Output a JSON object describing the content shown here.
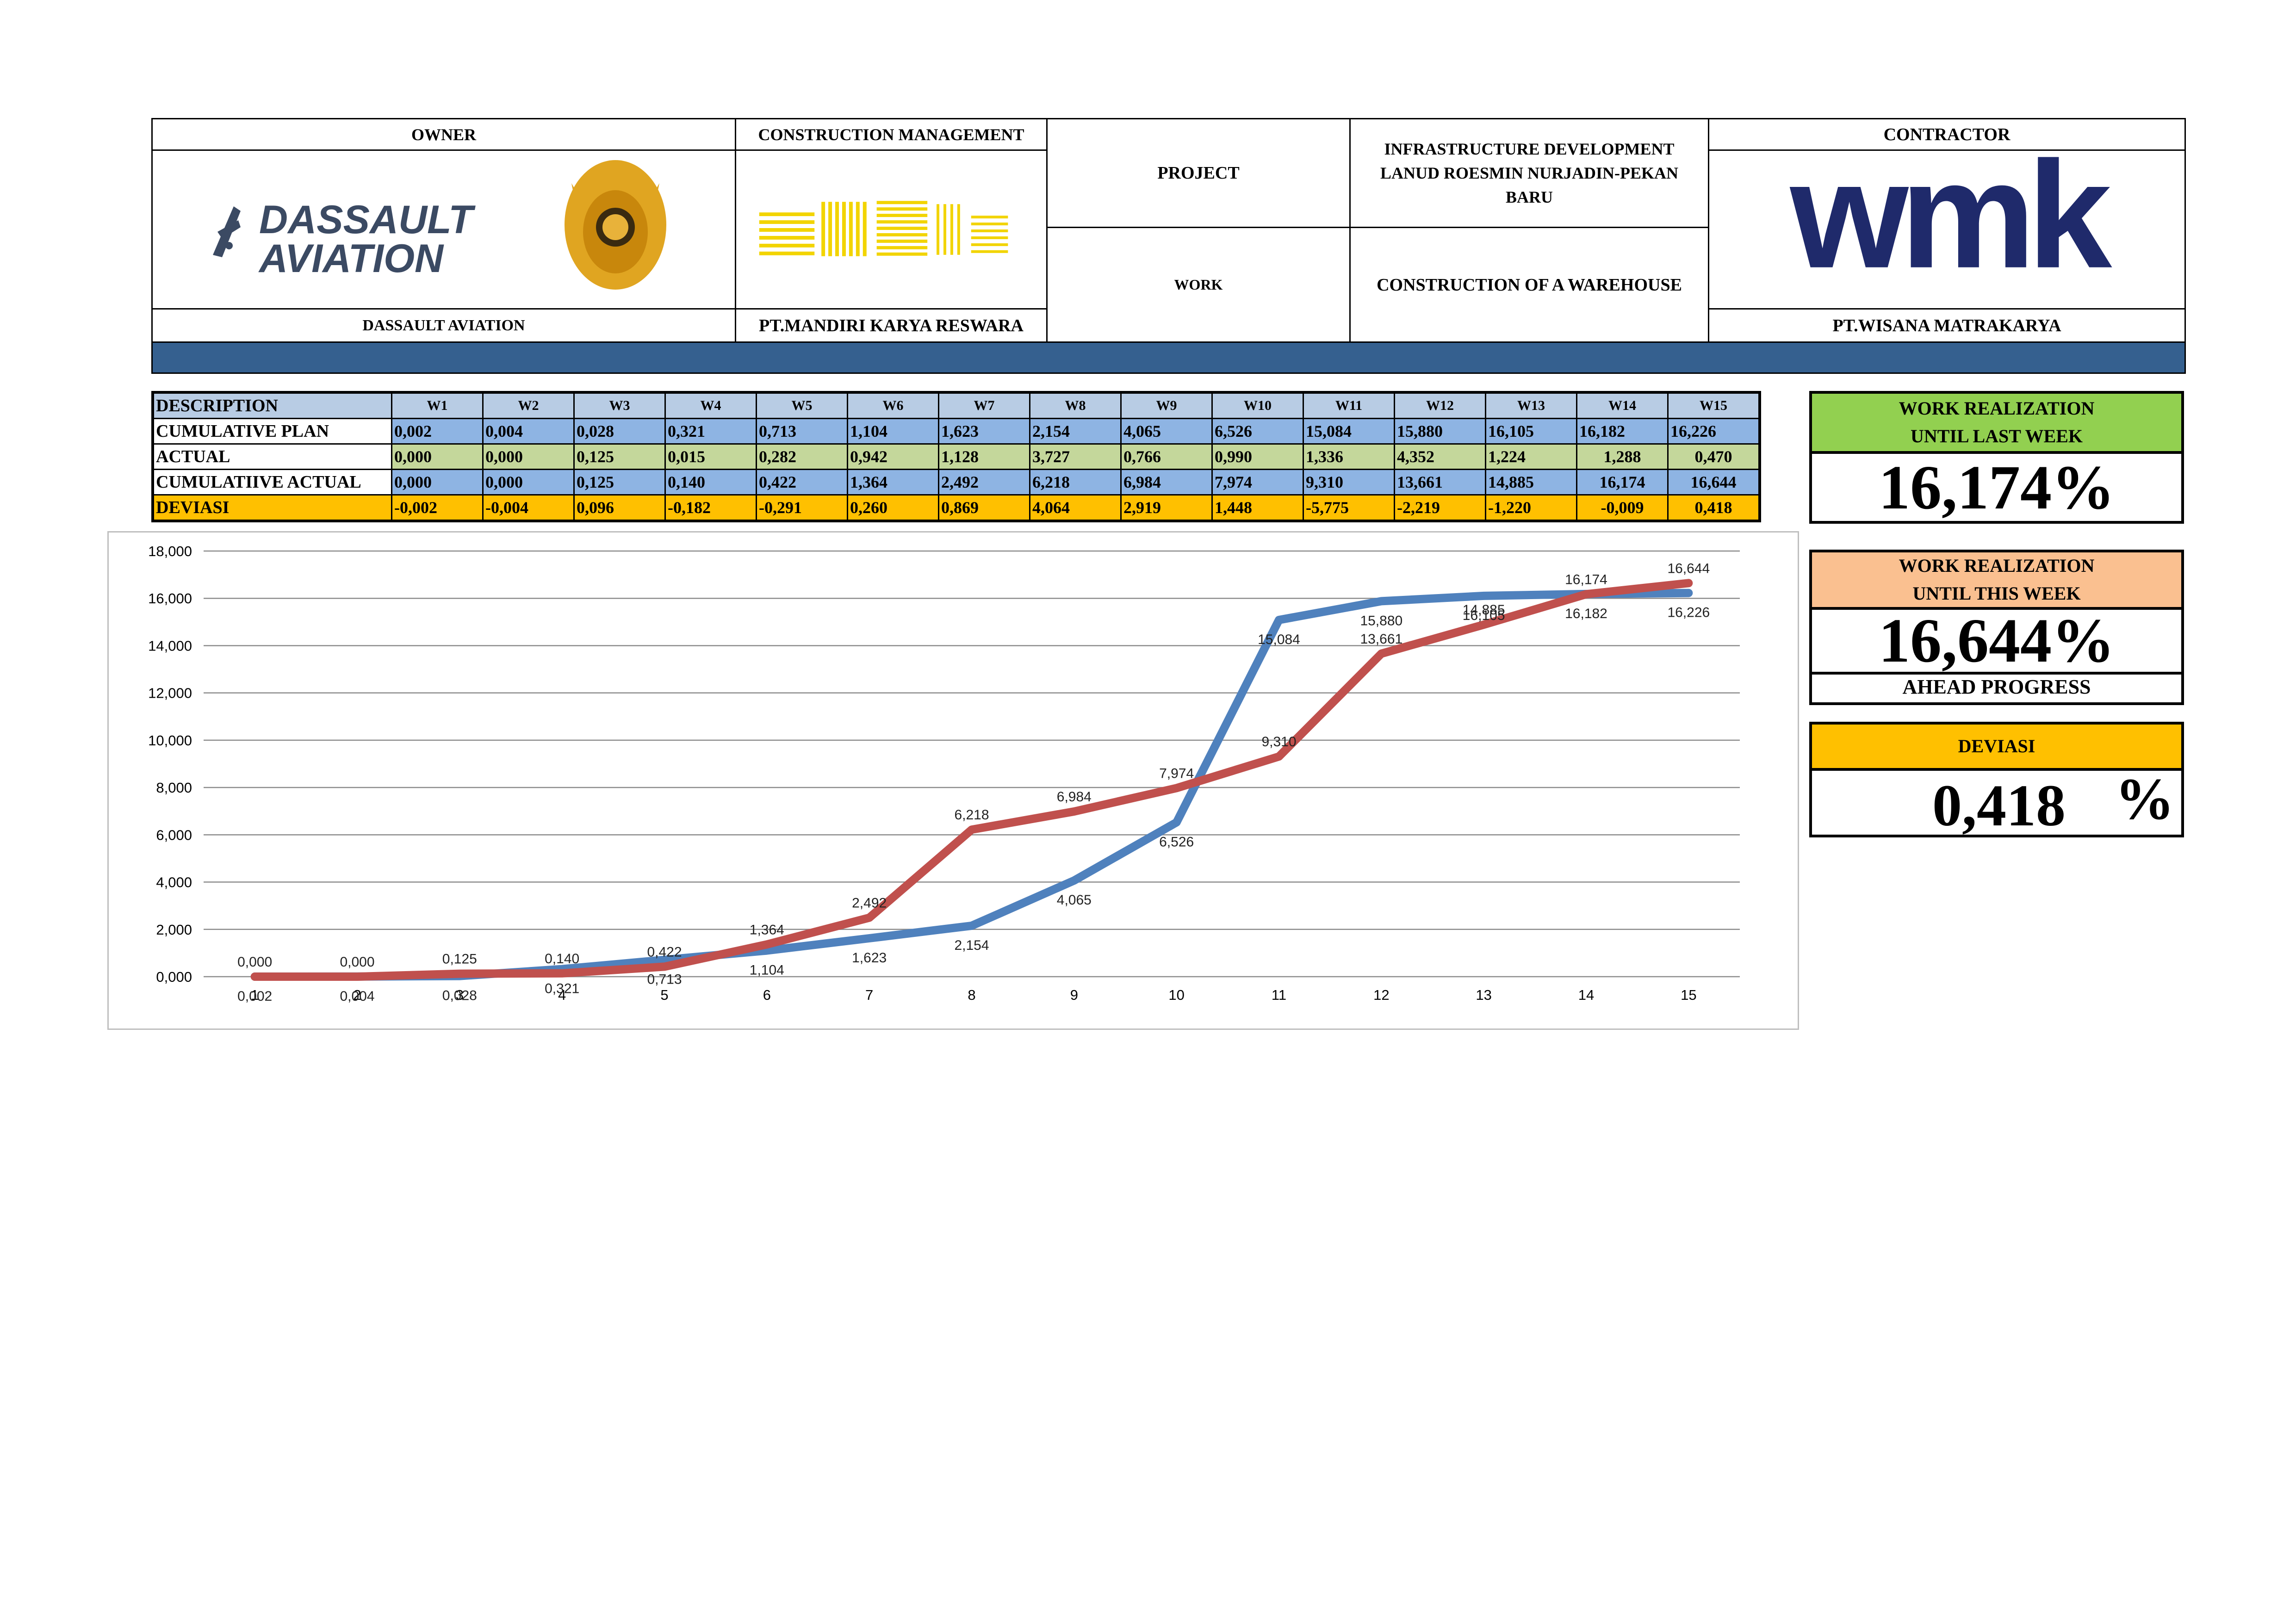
{
  "header": {
    "owner_title": "OWNER",
    "owner_name": "DASSAULT AVIATION",
    "owner_logo_text": [
      "DASSAULT",
      "AVIATION"
    ],
    "cm_title": "CONSTRUCTION MANAGEMENT",
    "cm_name": "PT.MANDIRI KARYA RESWARA",
    "project_label": "PROJECT",
    "project_value": "INFRASTRUCTURE DEVELOPMENT LANUD ROESMIN NURJADIN-PEKAN BARU",
    "work_label": "WORK",
    "work_value": "CONSTRUCTION OF A WAREHOUSE",
    "contractor_title": "CONTRACTOR",
    "contractor_name": "PT.WISANA MATRAKARYA",
    "contractor_logo_text": "wmk"
  },
  "table": {
    "description_label": "DESCRIPTION",
    "weeks": [
      "W1",
      "W2",
      "W3",
      "W4",
      "W5",
      "W6",
      "W7",
      "W8",
      "W9",
      "W10",
      "W11",
      "W12",
      "W13",
      "W14",
      "W15"
    ],
    "rows": [
      {
        "label": "CUMULATIVE PLAN",
        "values": [
          "0,002",
          "0,004",
          "0,028",
          "0,321",
          "0,713",
          "1,104",
          "1,623",
          "2,154",
          "4,065",
          "6,526",
          "15,084",
          "15,880",
          "16,105",
          "16,182",
          "16,226"
        ]
      },
      {
        "label": "ACTUAL",
        "values": [
          "0,000",
          "0,000",
          "0,125",
          "0,015",
          "0,282",
          "0,942",
          "1,128",
          "3,727",
          "0,766",
          "0,990",
          "1,336",
          "4,352",
          "1,224",
          "1,288",
          "0,470"
        ]
      },
      {
        "label": "CUMULATIIVE ACTUAL",
        "values": [
          "0,000",
          "0,000",
          "0,125",
          "0,140",
          "0,422",
          "1,364",
          "2,492",
          "6,218",
          "6,984",
          "7,974",
          "9,310",
          "13,661",
          "14,885",
          "16,174",
          "16,644"
        ]
      },
      {
        "label": "DEVIASI",
        "values": [
          "-0,002",
          "-0,004",
          "0,096",
          "-0,182",
          "-0,291",
          "0,260",
          "0,869",
          "4,064",
          "2,919",
          "1,448",
          "-5,775",
          "-2,219",
          "-1,220",
          "-0,009",
          "0,418"
        ]
      }
    ]
  },
  "panels": {
    "last_week_title_1": "WORK REALIZATION",
    "last_week_title_2": "UNTIL LAST WEEK",
    "last_week_value": "16,174%",
    "this_week_title_1": "WORK REALIZATION",
    "this_week_title_2": "UNTIL THIS WEEK",
    "this_week_value": "16,644%",
    "progress_status": "AHEAD PROGRESS",
    "deviasi_title": "DEVIASI",
    "deviasi_value": "0,418",
    "deviasi_unit": "%"
  },
  "colors": {
    "plan_line": "#4f81bd",
    "actual_line": "#c0504d",
    "header_band": "#35608f",
    "panel_green": "#92d050",
    "panel_peach": "#fac090",
    "panel_orange": "#ffc000"
  },
  "chart_data": {
    "type": "line",
    "x": [
      1,
      2,
      3,
      4,
      5,
      6,
      7,
      8,
      9,
      10,
      11,
      12,
      13,
      14,
      15
    ],
    "ylim": [
      0,
      18
    ],
    "yticks": [
      "0,000",
      "2,000",
      "4,000",
      "6,000",
      "8,000",
      "10,000",
      "12,000",
      "14,000",
      "16,000",
      "18,000"
    ],
    "grid": true,
    "legend": "none",
    "series": [
      {
        "color": "#4f81bd",
        "values": [
          0.002,
          0.004,
          0.028,
          0.321,
          0.713,
          1.104,
          1.623,
          2.154,
          4.065,
          6.526,
          15.084,
          15.88,
          16.105,
          16.182,
          16.226
        ],
        "labels": [
          "0,002",
          "0,004",
          "0,028",
          "0,321",
          "0,713",
          "1,104",
          "1,623",
          "2,154",
          "4,065",
          "6,526",
          "15,084",
          "15,880",
          "16,105",
          "16,182",
          "16,226"
        ]
      },
      {
        "color": "#c0504d",
        "values": [
          0.0,
          0.0,
          0.125,
          0.14,
          0.422,
          1.364,
          2.492,
          6.218,
          6.984,
          7.974,
          9.31,
          13.661,
          14.885,
          16.174,
          16.644
        ],
        "labels": [
          "0,000",
          "0,000",
          "0,125",
          "0,140",
          "0,422",
          "1,364",
          "2,492",
          "6,218",
          "6,984",
          "7,974",
          "9,310",
          "13,661",
          "14,885",
          "16,174",
          "16,644"
        ]
      }
    ]
  }
}
